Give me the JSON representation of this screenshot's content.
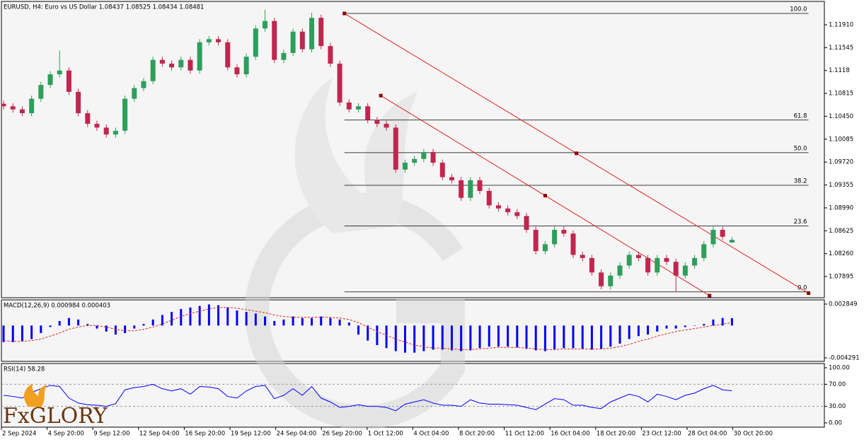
{
  "logo": "FxGLORY",
  "time_axis": {
    "labels": [
      "2 Sep 2024",
      "4 Sep 20:00",
      "9 Sep 12:00",
      "12 Sep 04:00",
      "16 Sep 20:00",
      "19 Sep 12:00",
      "24 Sep 04:00",
      "26 Sep 20:00",
      "1 Oct 12:00",
      "4 Oct 04:00",
      "8 Oct 20:00",
      "11 Oct 12:00",
      "16 Oct 04:00",
      "18 Oct 20:00",
      "23 Oct 12:00",
      "28 Oct 04:00",
      "30 Oct 20:00"
    ]
  },
  "chart_data": [
    {
      "type": "candlestick",
      "title": "EURUSD, H4:  Euro vs US Dollar  1.08437 1.08525 1.08434 1.08481",
      "up_color": "#2e9e5b",
      "down_color": "#c0264e",
      "xlim": [
        -0.23,
        87.9
      ],
      "ylim": [
        1.07557,
        1.12282
      ],
      "yticks": [
        {
          "value": 1.1191,
          "label": "1.11910"
        },
        1.11545,
        1.1118,
        1.10815,
        {
          "value": 1.1045,
          "label": "1.10450"
        },
        1.10085,
        {
          "value": 1.0972,
          "label": "1.09720"
        },
        1.09355,
        {
          "value": 1.0899,
          "label": "1.08990"
        },
        1.08625,
        {
          "value": 1.0826,
          "label": "1.08260"
        },
        1.07895
      ],
      "ohlc": [
        [
          1.1065,
          1.107,
          1.1056,
          1.1061
        ],
        [
          1.1061,
          1.1066,
          1.1051,
          1.1056
        ],
        [
          1.1056,
          1.1061,
          1.1045,
          1.105
        ],
        [
          1.105,
          1.1078,
          1.1045,
          1.1073
        ],
        [
          1.1073,
          1.11,
          1.1068,
          1.1095
        ],
        [
          1.1095,
          1.1117,
          1.109,
          1.1112
        ],
        [
          1.1112,
          1.115,
          1.1107,
          1.1118
        ],
        [
          1.1118,
          1.1123,
          1.1079,
          1.1084
        ],
        [
          1.1084,
          1.1089,
          1.1045,
          1.105
        ],
        [
          1.105,
          1.1055,
          1.1028,
          1.1033
        ],
        [
          1.1033,
          1.1038,
          1.1022,
          1.1027
        ],
        [
          1.1027,
          1.1032,
          1.1011,
          1.1016
        ],
        [
          1.1016,
          1.1027,
          1.1011,
          1.1022
        ],
        [
          1.1022,
          1.1078,
          1.1017,
          1.1073
        ],
        [
          1.1073,
          1.1095,
          1.1068,
          1.109
        ],
        [
          1.109,
          1.1106,
          1.1085,
          1.1101
        ],
        [
          1.1101,
          1.114,
          1.1096,
          1.1135
        ],
        [
          1.1135,
          1.114,
          1.1124,
          1.1129
        ],
        [
          1.1129,
          1.1134,
          1.1118,
          1.1123
        ],
        [
          1.1123,
          1.114,
          1.1118,
          1.1135
        ],
        [
          1.1135,
          1.114,
          1.1113,
          1.1118
        ],
        [
          1.1118,
          1.1168,
          1.1113,
          1.1163
        ],
        [
          1.1163,
          1.1173,
          1.1158,
          1.1168
        ],
        [
          1.1168,
          1.1173,
          1.1158,
          1.1163
        ],
        [
          1.1163,
          1.1168,
          1.1118,
          1.1123
        ],
        [
          1.1123,
          1.1128,
          1.1107,
          1.1112
        ],
        [
          1.1112,
          1.1145,
          1.1107,
          1.114
        ],
        [
          1.114,
          1.119,
          1.1135,
          1.1185
        ],
        [
          1.1185,
          1.1215,
          1.118,
          1.1197
        ],
        [
          1.1197,
          1.1202,
          1.113,
          1.1135
        ],
        [
          1.1135,
          1.1151,
          1.113,
          1.1146
        ],
        [
          1.1146,
          1.1185,
          1.1141,
          1.118
        ],
        [
          1.118,
          1.1185,
          1.1147,
          1.1152
        ],
        [
          1.1152,
          1.121,
          1.1147,
          1.1202
        ],
        [
          1.1202,
          1.1207,
          1.1152,
          1.1157
        ],
        [
          1.1157,
          1.1162,
          1.1124,
          1.1129
        ],
        [
          1.1129,
          1.1134,
          1.1062,
          1.1067
        ],
        [
          1.1067,
          1.1072,
          1.1051,
          1.1056
        ],
        [
          1.1056,
          1.1066,
          1.1051,
          1.1061
        ],
        [
          1.1061,
          1.1066,
          1.1034,
          1.1039
        ],
        [
          1.1039,
          1.1044,
          1.1028,
          1.1033
        ],
        [
          1.1033,
          1.1038,
          1.1022,
          1.1027
        ],
        [
          1.1027,
          1.1032,
          1.0955,
          1.096
        ],
        [
          1.096,
          1.0976,
          1.0955,
          1.0971
        ],
        [
          1.0971,
          1.0982,
          1.0966,
          1.0977
        ],
        [
          1.0977,
          1.0993,
          1.0972,
          1.0988
        ],
        [
          1.0988,
          1.0993,
          1.0966,
          1.0971
        ],
        [
          1.0971,
          1.0976,
          1.0943,
          1.0948
        ],
        [
          1.0948,
          1.0953,
          1.0938,
          1.0943
        ],
        [
          1.0943,
          1.0948,
          1.091,
          1.0915
        ],
        [
          1.0915,
          1.0948,
          1.091,
          1.0943
        ],
        [
          1.0943,
          1.0948,
          1.0921,
          1.0926
        ],
        [
          1.0926,
          1.0931,
          1.0898,
          1.0903
        ],
        [
          1.0903,
          1.0908,
          1.0893,
          1.0898
        ],
        [
          1.0898,
          1.0903,
          1.0887,
          1.0892
        ],
        [
          1.0892,
          1.0897,
          1.0881,
          1.0886
        ],
        [
          1.0886,
          1.0891,
          1.0859,
          1.0864
        ],
        [
          1.0864,
          1.0869,
          1.0825,
          1.083
        ],
        [
          1.083,
          1.0846,
          1.0825,
          1.0841
        ],
        [
          1.0841,
          1.0869,
          1.0836,
          1.0864
        ],
        [
          1.0864,
          1.0869,
          1.0853,
          1.0858
        ],
        [
          1.0858,
          1.0863,
          1.0819,
          1.0824
        ],
        [
          1.0824,
          1.0829,
          1.0814,
          1.0819
        ],
        [
          1.0819,
          1.0824,
          1.0791,
          1.0796
        ],
        [
          1.0796,
          1.0801,
          1.0769,
          1.0774
        ],
        [
          1.0774,
          1.0796,
          1.0769,
          1.0791
        ],
        [
          1.0791,
          1.0812,
          1.0786,
          1.0807
        ],
        [
          1.0807,
          1.0829,
          1.0802,
          1.0824
        ],
        [
          1.0824,
          1.0829,
          1.0814,
          1.0819
        ],
        [
          1.0819,
          1.0824,
          1.0791,
          1.0796
        ],
        [
          1.0796,
          1.0824,
          1.0791,
          1.0819
        ],
        [
          1.0819,
          1.0824,
          1.0808,
          1.0813
        ],
        [
          1.0813,
          1.0818,
          1.0766,
          1.0791
        ],
        [
          1.0791,
          1.0812,
          1.0786,
          1.0807
        ],
        [
          1.0807,
          1.0824,
          1.0802,
          1.0819
        ],
        [
          1.0819,
          1.0846,
          1.0814,
          1.0841
        ],
        [
          1.0841,
          1.0869,
          1.0836,
          1.0864
        ],
        [
          1.0864,
          1.0869,
          1.0848,
          1.0853
        ],
        [
          1.08437,
          1.08525,
          1.08434,
          1.08481
        ]
      ],
      "fib": {
        "color": "#000000",
        "x": [
          36.5,
          86.2
        ],
        "levels": [
          {
            "label": "100.0",
            "value": 1.1209
          },
          {
            "label": "61.8",
            "value": 1.1039
          },
          {
            "label": "50.0",
            "value": 1.0987
          },
          {
            "label": "38.2",
            "value": 1.0935
          },
          {
            "label": "23.6",
            "value": 1.087
          },
          {
            "label": "0.0",
            "value": 1.0765
          }
        ]
      },
      "trendlines": [
        {
          "color": "#e0261c",
          "x": [
            36.5,
            86.2
          ],
          "y": [
            1.1209,
            1.0763
          ]
        },
        {
          "color": "#e0261c",
          "x": [
            40.4,
            75.6
          ],
          "y": [
            1.1078,
            1.0759
          ]
        }
      ]
    },
    {
      "type": "macd",
      "title": "MACD(12,26,9) 0.000984 0.000403",
      "ylim": [
        -0.00476,
        0.00341
      ],
      "yticks": [
        0.002849,
        -0.004291
      ],
      "xlim": [
        -0.23,
        87.9
      ],
      "series": [
        {
          "color": "#0000ff",
          "values": [
            -0.0022,
            -0.0022,
            -0.0021,
            -0.0018,
            -0.001,
            -0.0002,
            0.0006,
            0.001,
            0.0008,
            0.0002,
            -0.0004,
            -0.0008,
            -0.0012,
            -0.001,
            -0.0004,
            0.0002,
            0.0008,
            0.0014,
            0.0018,
            0.0022,
            0.0024,
            0.0026,
            0.0028,
            0.0027,
            0.0024,
            0.002,
            0.0018,
            0.0016,
            0.0012,
            0.0006,
            0.0008,
            0.0012,
            0.001,
            0.001,
            0.0012,
            0.001,
            0.0008,
            0.0004,
            -0.0012,
            -0.002,
            -0.0026,
            -0.003,
            -0.0034,
            -0.0036,
            -0.0036,
            -0.0034,
            -0.0032,
            -0.0032,
            -0.0033,
            -0.0034,
            -0.0033,
            -0.003,
            -0.0028,
            -0.0028,
            -0.0028,
            -0.0029,
            -0.0031,
            -0.0033,
            -0.0034,
            -0.0032,
            -0.003,
            -0.003,
            -0.0031,
            -0.0032,
            -0.0031,
            -0.0028,
            -0.0024,
            -0.0018,
            -0.0014,
            -0.0012,
            -0.0008,
            -0.0004,
            -0.0004,
            -0.0002,
            0,
            0.0002,
            0.0008,
            0.001,
            0.000984
          ]
        },
        {
          "color": "#e0261c",
          "values": [
            -0.002,
            -0.0021,
            -0.0021,
            -0.002,
            -0.0018,
            -0.0014,
            -0.001,
            -0.0005,
            -0.0002,
            0,
            0,
            -0.0002,
            -0.0005,
            -0.0007,
            -0.0007,
            -0.0005,
            -0.0002,
            0.0002,
            0.0007,
            0.0012,
            0.0016,
            0.0019,
            0.0022,
            0.0024,
            0.0024,
            0.0023,
            0.0021,
            0.0019,
            0.0017,
            0.0014,
            0.0012,
            0.0011,
            0.0011,
            0.0011,
            0.0011,
            0.0011,
            0.001,
            0.0008,
            0.0004,
            -0.0002,
            -0.0008,
            -0.0013,
            -0.0018,
            -0.0022,
            -0.0026,
            -0.0028,
            -0.003,
            -0.003,
            -0.0031,
            -0.0032,
            -0.0032,
            -0.0031,
            -0.003,
            -0.0029,
            -0.0029,
            -0.0029,
            -0.003,
            -0.0031,
            -0.0032,
            -0.0032,
            -0.0031,
            -0.0031,
            -0.0031,
            -0.0031,
            -0.0031,
            -0.003,
            -0.0028,
            -0.0025,
            -0.0021,
            -0.0018,
            -0.0014,
            -0.0011,
            -0.0008,
            -0.0006,
            -0.0004,
            -0.0002,
            0,
            0.0002,
            0.000403
          ]
        }
      ]
    },
    {
      "type": "line",
      "title": "RSI(14) 58.28",
      "color": "#0000ff",
      "ylim": [
        -7.7,
        107.7
      ],
      "xlim": [
        -0.23,
        87.9
      ],
      "yticks": [
        {
          "value": 100,
          "label": "100.00"
        },
        {
          "value": 70,
          "label": "70.00"
        },
        {
          "value": 30,
          "label": "30.00"
        },
        {
          "value": 0,
          "label": "0.00"
        }
      ],
      "levels": [
        70,
        30
      ],
      "values": [
        50,
        48,
        45,
        55,
        62,
        68,
        66,
        45,
        36,
        33,
        32,
        30,
        35,
        60,
        64,
        66,
        70,
        62,
        58,
        62,
        52,
        66,
        65,
        62,
        48,
        45,
        58,
        66,
        68,
        44,
        50,
        62,
        50,
        66,
        45,
        38,
        28,
        30,
        33,
        30,
        30,
        28,
        22,
        34,
        38,
        42,
        36,
        32,
        32,
        30,
        42,
        36,
        34,
        34,
        33,
        32,
        28,
        24,
        34,
        44,
        42,
        32,
        32,
        28,
        26,
        38,
        45,
        52,
        48,
        38,
        52,
        48,
        42,
        50,
        54,
        62,
        68,
        60,
        58.28
      ]
    }
  ]
}
